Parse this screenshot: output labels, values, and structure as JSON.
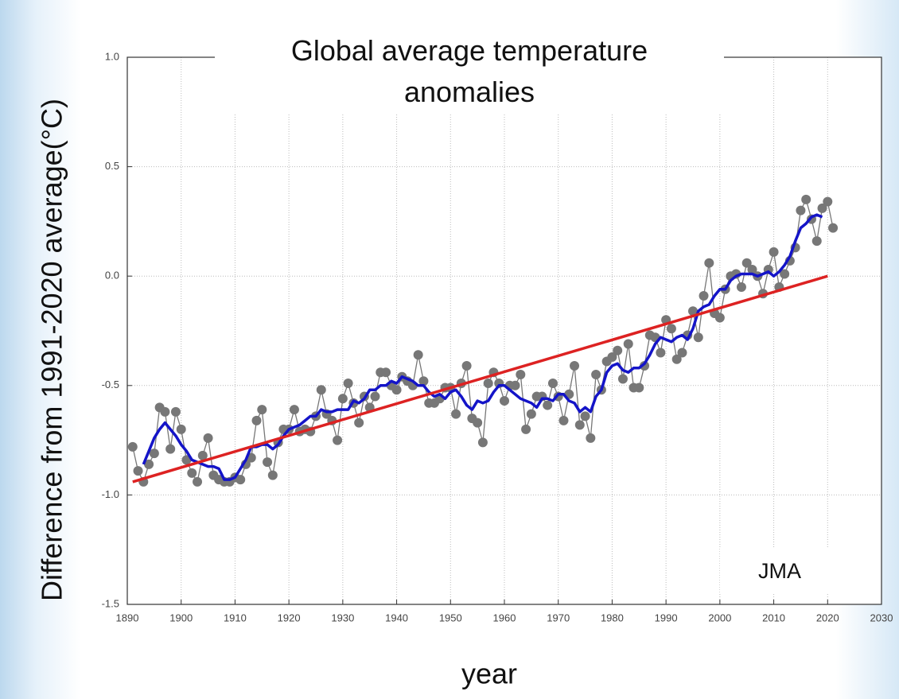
{
  "chart_data": {
    "type": "line",
    "title": "Global average temperature anomalies",
    "x_label": "year",
    "y_label": "Difference from 1991-2020 average(°C)",
    "annotation": "JMA",
    "x": [
      1891,
      1892,
      1893,
      1894,
      1895,
      1896,
      1897,
      1898,
      1899,
      1900,
      1901,
      1902,
      1903,
      1904,
      1905,
      1906,
      1907,
      1908,
      1909,
      1910,
      1911,
      1912,
      1913,
      1914,
      1915,
      1916,
      1917,
      1918,
      1919,
      1920,
      1921,
      1922,
      1923,
      1924,
      1925,
      1926,
      1927,
      1928,
      1929,
      1930,
      1931,
      1932,
      1933,
      1934,
      1935,
      1936,
      1937,
      1938,
      1939,
      1940,
      1941,
      1942,
      1943,
      1944,
      1945,
      1946,
      1947,
      1948,
      1949,
      1950,
      1951,
      1952,
      1953,
      1954,
      1955,
      1956,
      1957,
      1958,
      1959,
      1960,
      1961,
      1962,
      1963,
      1964,
      1965,
      1966,
      1967,
      1968,
      1969,
      1970,
      1971,
      1972,
      1973,
      1974,
      1975,
      1976,
      1977,
      1978,
      1979,
      1980,
      1981,
      1982,
      1983,
      1984,
      1985,
      1986,
      1987,
      1988,
      1989,
      1990,
      1991,
      1992,
      1993,
      1994,
      1995,
      1996,
      1997,
      1998,
      1999,
      2000,
      2001,
      2002,
      2003,
      2004,
      2005,
      2006,
      2007,
      2008,
      2009,
      2010,
      2011,
      2012,
      2013,
      2014,
      2015,
      2016,
      2017,
      2018,
      2019,
      2020,
      2021
    ],
    "series": [
      {
        "color": "#777777",
        "markers": true,
        "values": [
          -0.78,
          -0.89,
          -0.94,
          -0.86,
          -0.81,
          -0.6,
          -0.62,
          -0.79,
          -0.62,
          -0.7,
          -0.84,
          -0.9,
          -0.94,
          -0.82,
          -0.74,
          -0.91,
          -0.93,
          -0.94,
          -0.94,
          -0.92,
          -0.93,
          -0.86,
          -0.83,
          -0.66,
          -0.61,
          -0.85,
          -0.91,
          -0.76,
          -0.7,
          -0.7,
          -0.61,
          -0.71,
          -0.7,
          -0.71,
          -0.64,
          -0.52,
          -0.63,
          -0.66,
          -0.75,
          -0.56,
          -0.49,
          -0.58,
          -0.67,
          -0.55,
          -0.6,
          -0.55,
          -0.44,
          -0.44,
          -0.5,
          -0.52,
          -0.46,
          -0.48,
          -0.5,
          -0.36,
          -0.48,
          -0.58,
          -0.58,
          -0.56,
          -0.51,
          -0.51,
          -0.63,
          -0.49,
          -0.41,
          -0.65,
          -0.67,
          -0.76,
          -0.49,
          -0.44,
          -0.49,
          -0.57,
          -0.5,
          -0.5,
          -0.45,
          -0.7,
          -0.63,
          -0.55,
          -0.55,
          -0.59,
          -0.49,
          -0.55,
          -0.66,
          -0.54,
          -0.41,
          -0.68,
          -0.64,
          -0.74,
          -0.45,
          -0.52,
          -0.39,
          -0.37,
          -0.34,
          -0.47,
          -0.31,
          -0.51,
          -0.51,
          -0.41,
          -0.27,
          -0.28,
          -0.35,
          -0.2,
          -0.24,
          -0.38,
          -0.35,
          -0.27,
          -0.16,
          -0.28,
          -0.09,
          0.06,
          -0.17,
          -0.19,
          -0.06,
          0.0,
          0.01,
          -0.05,
          0.06,
          0.03,
          0.0,
          -0.08,
          0.03,
          0.11,
          -0.05,
          0.01,
          0.07,
          0.13,
          0.3,
          0.35,
          0.26,
          0.16,
          0.31,
          0.34,
          0.22
        ]
      },
      {
        "color": "#1414c8",
        "markers": false,
        "values": [
          null,
          null,
          -0.86,
          -0.8,
          -0.74,
          -0.7,
          -0.67,
          -0.7,
          -0.73,
          -0.77,
          -0.8,
          -0.84,
          -0.85,
          -0.86,
          -0.87,
          -0.87,
          -0.88,
          -0.93,
          -0.93,
          -0.92,
          -0.88,
          -0.84,
          -0.78,
          -0.78,
          -0.77,
          -0.77,
          -0.79,
          -0.77,
          -0.73,
          -0.7,
          -0.69,
          -0.68,
          -0.66,
          -0.64,
          -0.64,
          -0.61,
          -0.62,
          -0.62,
          -0.61,
          -0.61,
          -0.61,
          -0.57,
          -0.58,
          -0.56,
          -0.52,
          -0.52,
          -0.5,
          -0.5,
          -0.48,
          -0.49,
          -0.46,
          -0.47,
          -0.48,
          -0.5,
          -0.5,
          -0.53,
          -0.55,
          -0.54,
          -0.56,
          -0.53,
          -0.52,
          -0.55,
          -0.59,
          -0.61,
          -0.57,
          -0.58,
          -0.57,
          -0.53,
          -0.5,
          -0.5,
          -0.52,
          -0.54,
          -0.56,
          -0.57,
          -0.58,
          -0.6,
          -0.56,
          -0.56,
          -0.57,
          -0.54,
          -0.54,
          -0.57,
          -0.58,
          -0.62,
          -0.6,
          -0.62,
          -0.55,
          -0.52,
          -0.44,
          -0.41,
          -0.4,
          -0.43,
          -0.44,
          -0.42,
          -0.42,
          -0.4,
          -0.36,
          -0.31,
          -0.28,
          -0.29,
          -0.3,
          -0.28,
          -0.27,
          -0.29,
          -0.24,
          -0.16,
          -0.14,
          -0.13,
          -0.09,
          -0.06,
          -0.06,
          -0.02,
          0.0,
          0.01,
          0.01,
          0.01,
          0.0,
          0.01,
          0.02,
          0.0,
          0.02,
          0.05,
          0.09,
          0.16,
          0.22,
          0.24,
          0.27,
          0.28,
          0.27,
          null,
          null
        ]
      },
      {
        "color": "#dd2222",
        "markers": false,
        "x": [
          1891,
          2020
        ],
        "values": [
          -0.94,
          0.0
        ]
      }
    ],
    "xlim": [
      1890,
      2030
    ],
    "xticks": [
      1890,
      1900,
      1910,
      1920,
      1930,
      1940,
      1950,
      1960,
      1970,
      1980,
      1990,
      2000,
      2010,
      2020,
      2030
    ],
    "ylim": [
      -1.5,
      1.0
    ],
    "yticks": [
      {
        "value": -1.5,
        "label": "-1.5"
      },
      {
        "value": -1,
        "label": "-1.0"
      },
      -0.5,
      {
        "value": 0,
        "label": "0.0"
      },
      0.5,
      {
        "value": 1,
        "label": "1.0"
      }
    ],
    "grid": true
  }
}
